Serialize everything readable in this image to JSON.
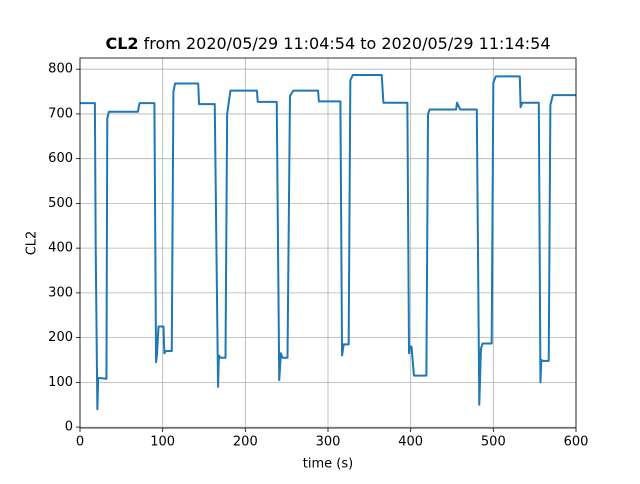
{
  "chart_data": {
    "type": "line",
    "title": {
      "bold": "CL2",
      "rest": "from 2020/05/29 11:04:54 to 2020/05/29 11:14:54"
    },
    "x_label": "time (s)",
    "y_label": "CL2",
    "series": [
      {
        "name": "CL2",
        "color": "#1f77b4",
        "x": [
          0,
          18,
          19,
          21,
          22,
          32,
          33,
          35,
          70,
          72,
          90,
          92,
          93,
          95,
          101,
          102,
          104,
          111,
          113,
          115,
          143,
          144,
          163,
          167,
          168,
          170,
          176,
          178,
          182,
          214,
          215,
          238,
          241,
          243,
          245,
          251,
          254,
          258,
          288,
          289,
          315,
          317,
          319,
          325,
          327,
          330,
          365,
          367,
          396,
          398,
          399,
          401,
          404,
          419,
          421,
          423,
          455,
          456,
          460,
          480,
          483,
          485,
          487,
          498,
          500,
          503,
          532,
          533,
          535,
          555,
          557,
          558,
          560,
          567,
          569,
          572,
          600
        ],
        "values": [
          724,
          724,
          400,
          40,
          110,
          108,
          690,
          705,
          705,
          724,
          724,
          145,
          160,
          225,
          225,
          165,
          170,
          170,
          750,
          768,
          768,
          722,
          722,
          90,
          160,
          155,
          155,
          700,
          752,
          752,
          727,
          727,
          105,
          165,
          155,
          155,
          740,
          752,
          752,
          728,
          728,
          160,
          185,
          185,
          775,
          787,
          787,
          725,
          725,
          165,
          180,
          180,
          115,
          115,
          700,
          710,
          710,
          725,
          710,
          710,
          50,
          175,
          187,
          187,
          770,
          784,
          784,
          715,
          725,
          725,
          100,
          150,
          148,
          148,
          720,
          742,
          742
        ]
      }
    ],
    "xlim": [
      0,
      600
    ],
    "xticks": [
      0,
      100,
      200,
      300,
      400,
      500,
      600
    ],
    "ylim": [
      -2,
      825
    ],
    "yticks": [
      0,
      100,
      200,
      300,
      400,
      500,
      600,
      700,
      800
    ],
    "grid": true
  }
}
